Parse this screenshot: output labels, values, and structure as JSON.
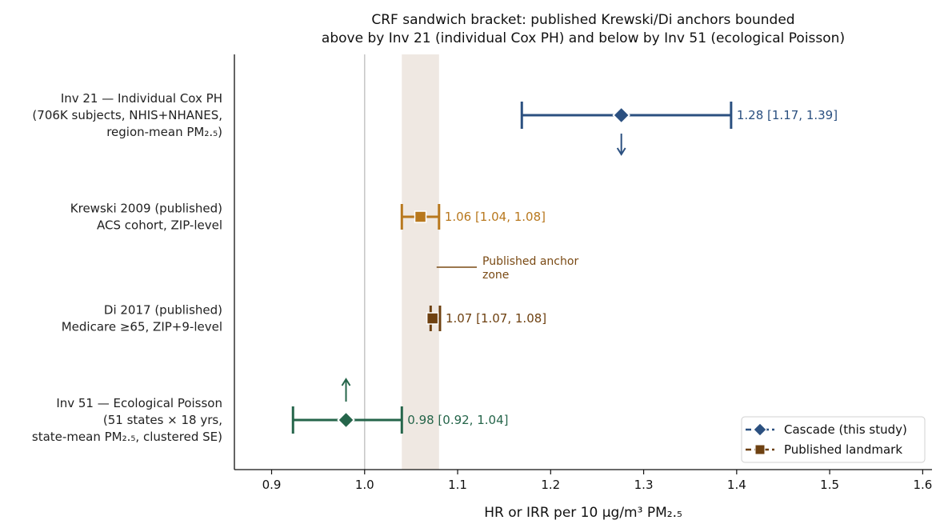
{
  "chart_data": {
    "type": "forest",
    "title_lines": [
      "CRF sandwich bracket: published Krewski/Di anchors bounded",
      "above by Inv 21 (individual Cox PH) and below by Inv 51 (ecological Poisson)"
    ],
    "xlabel": "HR or IRR per 10 μg/m³ PM₂.₅",
    "xlim": [
      0.86,
      1.61
    ],
    "xticks": [
      0.9,
      1.0,
      1.1,
      1.2,
      1.3,
      1.4,
      1.5,
      1.6
    ],
    "reference_line": 1.0,
    "anchor_zone": {
      "from": 1.04,
      "to": 1.08,
      "label_lines": [
        "Published anchor",
        "zone"
      ]
    },
    "rows": [
      {
        "label_lines": [
          "Inv 21 — Individual Cox PH",
          "(706K subjects, NHIS+NHANES,",
          "region-mean PM₂.₅)"
        ],
        "estimate": 1.276,
        "low": 1.169,
        "high": 1.394,
        "value_label": "1.28  [1.17, 1.39]",
        "kind": "cascade",
        "color": "#2b5080",
        "arrow": "down"
      },
      {
        "label_lines": [
          "Krewski 2009 (published)",
          "ACS cohort, ZIP-level"
        ],
        "estimate": 1.06,
        "low": 1.04,
        "high": 1.08,
        "value_label": "1.06  [1.04, 1.08]",
        "kind": "published",
        "color": "#b8781e",
        "arrow": "none"
      },
      {
        "label_lines": [
          "Di 2017 (published)",
          "Medicare ≥65, ZIP+9-level"
        ],
        "estimate": 1.073,
        "low": 1.071,
        "high": 1.081,
        "value_label": "1.07  [1.07, 1.08]",
        "kind": "published",
        "color": "#6e4111",
        "arrow": "none"
      },
      {
        "label_lines": [
          "Inv 51 — Ecological Poisson",
          "(51 states × 18 yrs,",
          "state-mean PM₂.₅, clustered SE)"
        ],
        "estimate": 0.98,
        "low": 0.923,
        "high": 1.04,
        "value_label": "0.98  [0.92, 1.04]",
        "kind": "cascade",
        "color": "#25654a",
        "arrow": "up"
      }
    ],
    "legend": {
      "placement": "lower-right",
      "entries": [
        {
          "label": "Cascade (this study)",
          "marker": "diamond",
          "color": "#2b5080"
        },
        {
          "label": "Published landmark",
          "marker": "square",
          "color": "#6e4111"
        }
      ]
    },
    "colors": {
      "anchor_zone": "#efe8e2",
      "reference_line": "#c8c8c8",
      "annotation": "#7a4a14"
    }
  }
}
